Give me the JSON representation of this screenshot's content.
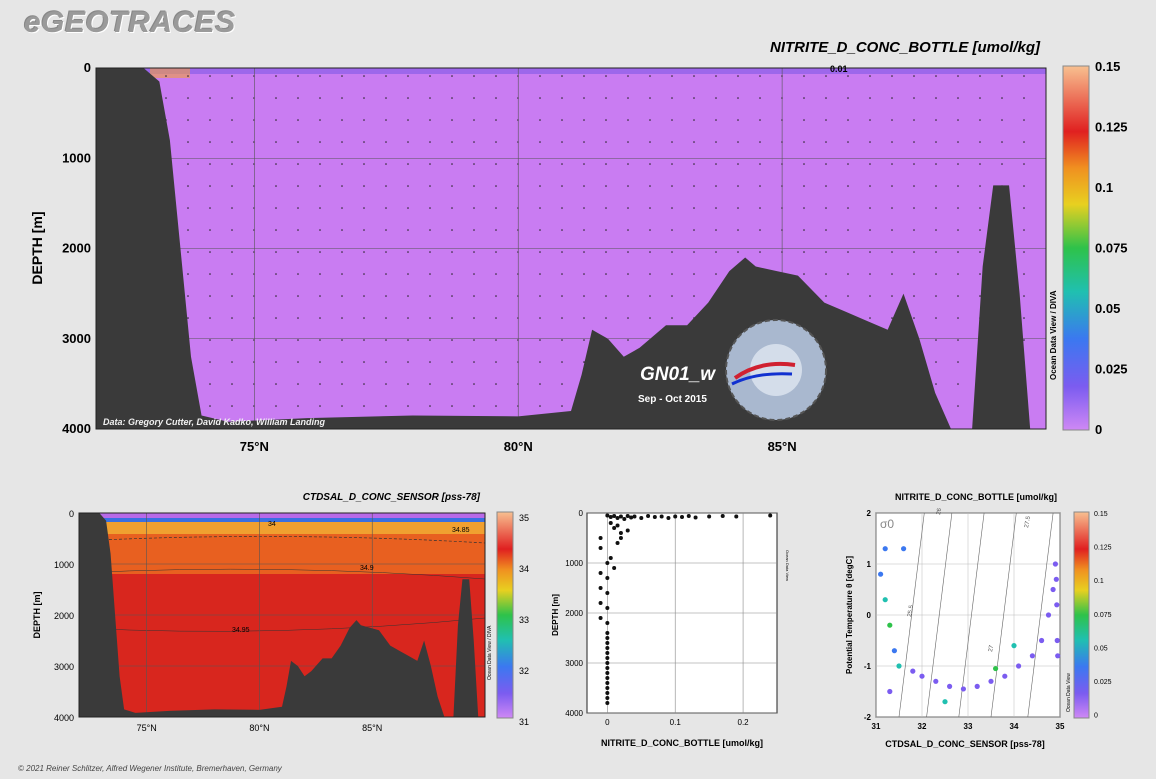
{
  "brand": "eGEOTRACES",
  "footer": "© 2021 Reiner Schlitzer, Alfred Wegener Institute, Bremerhaven, Germany",
  "colors": {
    "bg": "#e6e6e6",
    "bathymetry": "#3a3a3a",
    "nitrite_fill": "#c97cf2",
    "salinity_fill": "#d8261e"
  },
  "chart_data": [
    {
      "type": "heatmap",
      "id": "main-section",
      "title": "NITRITE_D_CONC_BOTTLE [umol/kg]",
      "ylabel": "DEPTH [m]",
      "xlabel": "",
      "ylim": [
        0,
        4000
      ],
      "xlim": [
        72,
        90
      ],
      "x_ticks": [
        "75°N",
        "80°N",
        "85°N"
      ],
      "x_tick_values": [
        75,
        80,
        85
      ],
      "y_ticks": [
        "0",
        "1000",
        "2000",
        "3000",
        "4000"
      ],
      "y_tick_values": [
        0,
        1000,
        2000,
        3000,
        4000
      ],
      "colorbar": {
        "min": 0,
        "max": 0.15,
        "labels": [
          "0.15",
          "0.125",
          "0.1",
          "0.075",
          "0.05",
          "0.025",
          "0"
        ]
      },
      "annotations": {
        "credit": "Data: Gregory Cutter, David Kadko, William Landing",
        "cruise": "GN01_w",
        "period": "Sep - Oct 2015",
        "contour_label": "0.01",
        "side_label": "Ocean Data View / DIVA"
      },
      "bathymetry": [
        [
          72.0,
          0
        ],
        [
          72.9,
          0
        ],
        [
          73.2,
          150
        ],
        [
          73.4,
          800
        ],
        [
          73.6,
          2000
        ],
        [
          73.8,
          3200
        ],
        [
          74.0,
          3850
        ],
        [
          74.5,
          3920
        ],
        [
          76,
          3880
        ],
        [
          78,
          3850
        ],
        [
          80,
          3860
        ],
        [
          81,
          3800
        ],
        [
          81.2,
          3400
        ],
        [
          81.4,
          2900
        ],
        [
          81.7,
          3000
        ],
        [
          82.0,
          3200
        ],
        [
          82.3,
          3100
        ],
        [
          82.8,
          2850
        ],
        [
          83.2,
          2850
        ],
        [
          83.6,
          2600
        ],
        [
          84.0,
          2250
        ],
        [
          84.3,
          2100
        ],
        [
          84.5,
          2200
        ],
        [
          84.9,
          2250
        ],
        [
          85.3,
          2300
        ],
        [
          85.8,
          2600
        ],
        [
          86.2,
          2700
        ],
        [
          86.6,
          2800
        ],
        [
          87.0,
          2900
        ],
        [
          87.3,
          2500
        ],
        [
          87.6,
          3000
        ],
        [
          87.9,
          3600
        ],
        [
          88.2,
          4050
        ],
        [
          88.6,
          4050
        ],
        [
          88.8,
          2200
        ],
        [
          89.0,
          1300
        ],
        [
          89.3,
          1300
        ],
        [
          89.5,
          2500
        ],
        [
          89.7,
          4050
        ],
        [
          90,
          4100
        ]
      ]
    },
    {
      "type": "heatmap",
      "id": "salinity-section",
      "title": "CTDSAL_D_CONC_SENSOR [pss-78]",
      "ylabel": "DEPTH [m]",
      "ylim": [
        0,
        4000
      ],
      "xlim": [
        72,
        90
      ],
      "x_ticks": [
        "75°N",
        "80°N",
        "85°N"
      ],
      "x_tick_values": [
        75,
        80,
        85
      ],
      "y_ticks": [
        "0",
        "1000",
        "2000",
        "3000",
        "4000"
      ],
      "y_tick_values": [
        0,
        1000,
        2000,
        3000,
        4000
      ],
      "colorbar": {
        "min": 31,
        "max": 35,
        "labels": [
          "35",
          "34",
          "33",
          "32",
          "31"
        ]
      },
      "contour_labels": [
        "34",
        "34.85",
        "34.9",
        "34.95"
      ],
      "side_label": "Ocean Data View / DIVA"
    },
    {
      "type": "scatter",
      "id": "nitrite-profile",
      "xlabel": "NITRITE_D_CONC_BOTTLE [umol/kg]",
      "ylabel": "DEPTH [m]",
      "xlim": [
        -0.03,
        0.25
      ],
      "ylim": [
        0,
        4000
      ],
      "x_ticks": [
        "0",
        "0.1",
        "0.2"
      ],
      "x_tick_values": [
        0,
        0.1,
        0.2
      ],
      "y_ticks": [
        "0",
        "1000",
        "2000",
        "3000",
        "4000"
      ],
      "y_tick_values": [
        0,
        1000,
        2000,
        3000,
        4000
      ],
      "side_label": "Ocean Data View",
      "points": [
        [
          0,
          50
        ],
        [
          0.005,
          80
        ],
        [
          0.01,
          60
        ],
        [
          0.015,
          100
        ],
        [
          0.02,
          70
        ],
        [
          0.025,
          120
        ],
        [
          0.03,
          60
        ],
        [
          0.035,
          90
        ],
        [
          0.04,
          70
        ],
        [
          0.05,
          100
        ],
        [
          0.06,
          60
        ],
        [
          0.07,
          80
        ],
        [
          0.08,
          70
        ],
        [
          0.09,
          100
        ],
        [
          0.1,
          70
        ],
        [
          0.11,
          80
        ],
        [
          0.12,
          60
        ],
        [
          0.13,
          90
        ],
        [
          0.15,
          70
        ],
        [
          0.17,
          60
        ],
        [
          0.19,
          70
        ],
        [
          0.24,
          50
        ],
        [
          0.005,
          200
        ],
        [
          0.01,
          300
        ],
        [
          0.02,
          400
        ],
        [
          0.015,
          600
        ],
        [
          0.005,
          900
        ],
        [
          0.01,
          1100
        ],
        [
          -0.01,
          500
        ],
        [
          -0.01,
          700
        ],
        [
          -0.01,
          1200
        ],
        [
          -0.01,
          1500
        ],
        [
          -0.01,
          1800
        ],
        [
          -0.01,
          2100
        ],
        [
          0,
          2400
        ],
        [
          0,
          2600
        ],
        [
          0,
          2800
        ],
        [
          0,
          3000
        ],
        [
          0,
          3200
        ],
        [
          0,
          3400
        ],
        [
          0,
          3600
        ],
        [
          0,
          3800
        ],
        [
          0,
          1000
        ],
        [
          0,
          1300
        ],
        [
          0,
          1600
        ],
        [
          0,
          1900
        ],
        [
          0,
          2200
        ],
        [
          0,
          2500
        ],
        [
          0,
          2700
        ],
        [
          0,
          2900
        ],
        [
          0,
          3100
        ],
        [
          0,
          3300
        ],
        [
          0,
          3500
        ],
        [
          0,
          3700
        ],
        [
          0.015,
          250
        ],
        [
          0.02,
          500
        ],
        [
          0.03,
          350
        ]
      ]
    },
    {
      "type": "scatter",
      "id": "ts-diagram",
      "title": "NITRITE_D_CONC_BOTTLE [umol/kg]",
      "xlabel": "CTDSAL_D_CONC_SENSOR [pss-78]",
      "ylabel": "Potential Temperature θ [degC]",
      "xlim": [
        31,
        35
      ],
      "ylim": [
        -2,
        2
      ],
      "x_ticks": [
        "31",
        "32",
        "33",
        "34",
        "35"
      ],
      "x_tick_values": [
        31,
        32,
        33,
        34,
        35
      ],
      "y_ticks": [
        "2",
        "1",
        "0",
        "-1",
        "-2"
      ],
      "y_tick_values": [
        2,
        1,
        0,
        -1,
        -2
      ],
      "colorbar": {
        "min": 0,
        "max": 0.15,
        "labels": [
          "0.15",
          "0.125",
          "0.1",
          "0.075",
          "0.05",
          "0.025",
          "0"
        ]
      },
      "isopycnals": [
        "25.5",
        "26",
        "27",
        "27.5"
      ],
      "sigma_label": "σ0",
      "side_label": "Ocean Data View",
      "points": [
        [
          31.1,
          0.8,
          0.02
        ],
        [
          31.2,
          0.3,
          0.04
        ],
        [
          31.3,
          -0.2,
          0.06
        ],
        [
          31.4,
          -0.7,
          0.03
        ],
        [
          31.5,
          -1.0,
          0.05
        ],
        [
          31.6,
          1.3,
          0.02
        ],
        [
          31.2,
          1.3,
          0.03
        ],
        [
          31.3,
          -1.5,
          0.01
        ],
        [
          31.8,
          -1.1,
          0.0
        ],
        [
          32.0,
          -1.2,
          0.0
        ],
        [
          32.3,
          -1.3,
          0.0
        ],
        [
          32.6,
          -1.4,
          0.0
        ],
        [
          32.9,
          -1.45,
          0.0
        ],
        [
          33.2,
          -1.4,
          0.0
        ],
        [
          33.5,
          -1.3,
          0.0
        ],
        [
          33.8,
          -1.2,
          0.0
        ],
        [
          34.1,
          -1.0,
          0.0
        ],
        [
          34.4,
          -0.8,
          0.0
        ],
        [
          34.6,
          -0.5,
          0.0
        ],
        [
          34.75,
          0.0,
          0.0
        ],
        [
          34.85,
          0.5,
          0.0
        ],
        [
          34.9,
          1.0,
          0.0
        ],
        [
          34.92,
          0.7,
          0.0
        ],
        [
          34.93,
          0.2,
          0.0
        ],
        [
          34.94,
          -0.5,
          0.0
        ],
        [
          34.95,
          -0.8,
          0.0
        ],
        [
          33.6,
          -1.05,
          0.07
        ],
        [
          34.0,
          -0.6,
          0.05
        ],
        [
          32.5,
          -1.7,
          0.04
        ]
      ]
    }
  ]
}
